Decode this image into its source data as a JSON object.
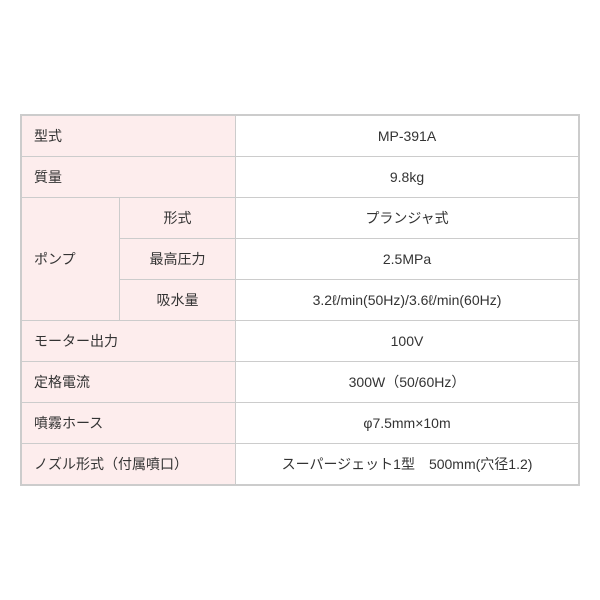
{
  "type": "table",
  "colors": {
    "label_bg": "#fdeded",
    "value_bg": "#ffffff",
    "border": "#cccccc",
    "text": "#333333"
  },
  "typography": {
    "fontsize": 14
  },
  "rows": {
    "model": {
      "label": "型式",
      "value": "MP-391A"
    },
    "mass": {
      "label": "質量",
      "value": "9.8kg"
    },
    "pump": {
      "label": "ポンプ",
      "sub": [
        {
          "label": "形式",
          "value": "プランジャ式"
        },
        {
          "label": "最高圧力",
          "value": "2.5MPa"
        },
        {
          "label": "吸水量",
          "value": "3.2ℓ/min(50Hz)/3.6ℓ/min(60Hz)"
        }
      ]
    },
    "motor": {
      "label": "モーター出力",
      "value": "100V"
    },
    "current": {
      "label": "定格電流",
      "value": "300W（50/60Hz）"
    },
    "hose": {
      "label": "噴霧ホース",
      "value": "φ7.5mm×10m"
    },
    "nozzle": {
      "label": "ノズル形式（付属噴口）",
      "value": "スーパージェット1型　500mm(穴径1.2)"
    }
  }
}
